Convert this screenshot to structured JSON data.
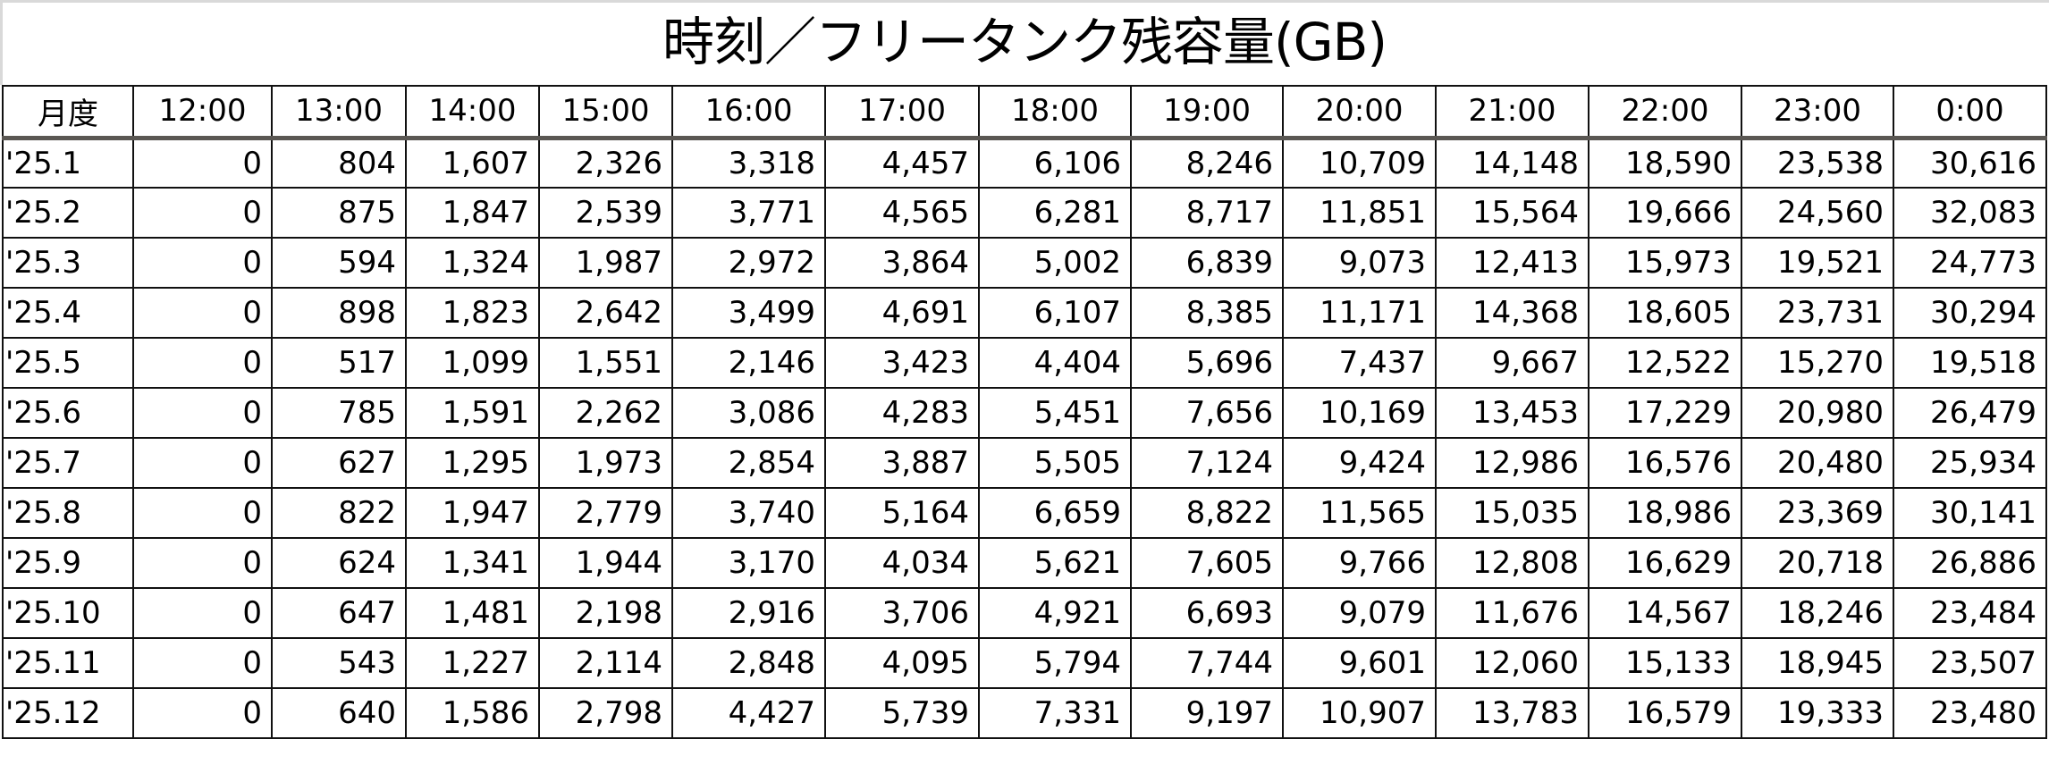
{
  "title": "時刻／フリータンク残容量(GB)",
  "columns": [
    "月度",
    "12:00",
    "13:00",
    "14:00",
    "15:00",
    "16:00",
    "17:00",
    "18:00",
    "19:00",
    "20:00",
    "21:00",
    "22:00",
    "23:00",
    "0:00"
  ],
  "rows": [
    [
      "'25.1",
      "0",
      "804",
      "1,607",
      "2,326",
      "3,318",
      "4,457",
      "6,106",
      "8,246",
      "10,709",
      "14,148",
      "18,590",
      "23,538",
      "30,616"
    ],
    [
      "'25.2",
      "0",
      "875",
      "1,847",
      "2,539",
      "3,771",
      "4,565",
      "6,281",
      "8,717",
      "11,851",
      "15,564",
      "19,666",
      "24,560",
      "32,083"
    ],
    [
      "'25.3",
      "0",
      "594",
      "1,324",
      "1,987",
      "2,972",
      "3,864",
      "5,002",
      "6,839",
      "9,073",
      "12,413",
      "15,973",
      "19,521",
      "24,773"
    ],
    [
      "'25.4",
      "0",
      "898",
      "1,823",
      "2,642",
      "3,499",
      "4,691",
      "6,107",
      "8,385",
      "11,171",
      "14,368",
      "18,605",
      "23,731",
      "30,294"
    ],
    [
      "'25.5",
      "0",
      "517",
      "1,099",
      "1,551",
      "2,146",
      "3,423",
      "4,404",
      "5,696",
      "7,437",
      "9,667",
      "12,522",
      "15,270",
      "19,518"
    ],
    [
      "'25.6",
      "0",
      "785",
      "1,591",
      "2,262",
      "3,086",
      "4,283",
      "5,451",
      "7,656",
      "10,169",
      "13,453",
      "17,229",
      "20,980",
      "26,479"
    ],
    [
      "'25.7",
      "0",
      "627",
      "1,295",
      "1,973",
      "2,854",
      "3,887",
      "5,505",
      "7,124",
      "9,424",
      "12,986",
      "16,576",
      "20,480",
      "25,934"
    ],
    [
      "'25.8",
      "0",
      "822",
      "1,947",
      "2,779",
      "3,740",
      "5,164",
      "6,659",
      "8,822",
      "11,565",
      "15,035",
      "18,986",
      "23,369",
      "30,141"
    ],
    [
      "'25.9",
      "0",
      "624",
      "1,341",
      "1,944",
      "3,170",
      "4,034",
      "5,621",
      "7,605",
      "9,766",
      "12,808",
      "16,629",
      "20,718",
      "26,886"
    ],
    [
      "'25.10",
      "0",
      "647",
      "1,481",
      "2,198",
      "2,916",
      "3,706",
      "4,921",
      "6,693",
      "9,079",
      "11,676",
      "14,567",
      "18,246",
      "23,484"
    ],
    [
      "'25.11",
      "0",
      "543",
      "1,227",
      "2,114",
      "2,848",
      "4,095",
      "5,794",
      "7,744",
      "9,601",
      "12,060",
      "15,133",
      "18,945",
      "23,507"
    ],
    [
      "'25.12",
      "0",
      "640",
      "1,586",
      "2,798",
      "4,427",
      "5,739",
      "7,331",
      "9,197",
      "10,907",
      "13,783",
      "16,579",
      "19,333",
      "23,480"
    ]
  ]
}
